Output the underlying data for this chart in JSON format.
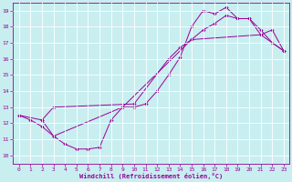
{
  "xlabel": "Windchill (Refroidissement éolien,°C)",
  "xlim": [
    -0.5,
    23.5
  ],
  "ylim": [
    9.5,
    19.5
  ],
  "xticks": [
    0,
    1,
    2,
    3,
    4,
    5,
    6,
    7,
    8,
    9,
    10,
    11,
    12,
    13,
    14,
    15,
    16,
    17,
    18,
    19,
    20,
    21,
    22,
    23
  ],
  "yticks": [
    10,
    11,
    12,
    13,
    14,
    15,
    16,
    17,
    18,
    19
  ],
  "bg_color": "#c8eef0",
  "line_color": "#990099",
  "curve1_x": [
    0,
    1,
    2,
    3,
    4,
    5,
    6,
    7,
    8,
    9,
    10,
    11,
    12,
    13,
    14,
    15,
    16,
    17,
    18,
    19,
    20,
    21,
    22,
    23
  ],
  "curve1_y": [
    12.5,
    12.2,
    11.8,
    11.2,
    10.7,
    10.4,
    10.4,
    10.5,
    12.2,
    13.0,
    13.0,
    13.2,
    14.0,
    15.0,
    16.1,
    18.0,
    19.0,
    18.8,
    19.2,
    18.5,
    18.5,
    17.8,
    17.0,
    16.5
  ],
  "curve2_x": [
    0,
    2,
    3,
    10,
    13,
    14,
    15,
    16,
    17,
    18,
    19,
    20,
    21,
    22,
    23
  ],
  "curve2_y": [
    12.5,
    12.2,
    13.0,
    13.2,
    16.0,
    16.7,
    17.2,
    17.8,
    18.2,
    18.7,
    18.5,
    18.5,
    17.5,
    17.8,
    16.5
  ],
  "curve3_x": [
    2,
    3,
    9,
    15,
    21,
    23
  ],
  "curve3_y": [
    12.2,
    11.2,
    13.0,
    17.2,
    17.5,
    16.5
  ]
}
